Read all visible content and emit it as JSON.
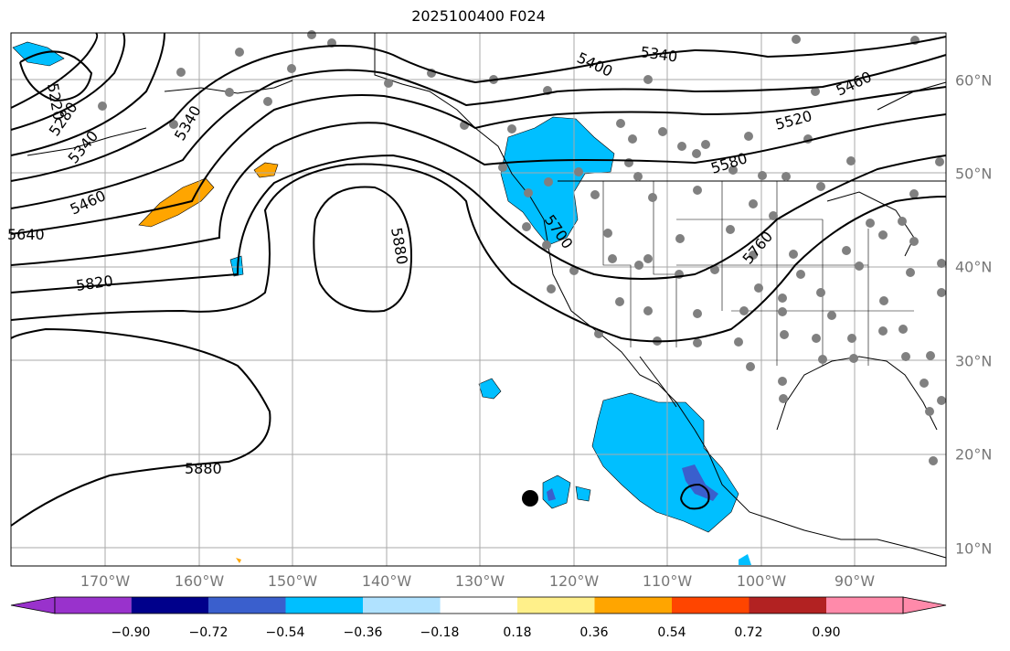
{
  "title": "2025100400 F024",
  "lon_labels": [
    "170°W",
    "160°W",
    "150°W",
    "140°W",
    "130°W",
    "120°W",
    "110°W",
    "100°W",
    "90°W"
  ],
  "lat_labels": [
    "60°N",
    "50°N",
    "40°N",
    "30°N",
    "20°N",
    "10°N"
  ],
  "contour_labels": [
    "5220",
    "5280",
    "5340",
    "5400",
    "5460",
    "5520",
    "5580",
    "5640",
    "5700",
    "5760",
    "5820",
    "5880"
  ],
  "colorbar": {
    "tick_labels": [
      "−0.90",
      "−0.72",
      "−0.54",
      "−0.36",
      "−0.18",
      "0.18",
      "0.36",
      "0.54",
      "0.72",
      "0.90"
    ],
    "colors": [
      "#9932cc",
      "#00008b",
      "#3a5fcd",
      "#00bfff",
      "#b0e2ff",
      "#ffffff",
      "#fff08a",
      "#ffa500",
      "#ff4500",
      "#b22222",
      "#ff8aaa"
    ]
  },
  "colors": {
    "contour": "#000000",
    "grid": "#aaaaaa",
    "stations": "#808080",
    "negative_anomaly": "#00bfff",
    "positive_anomaly": "#ffa500"
  }
}
